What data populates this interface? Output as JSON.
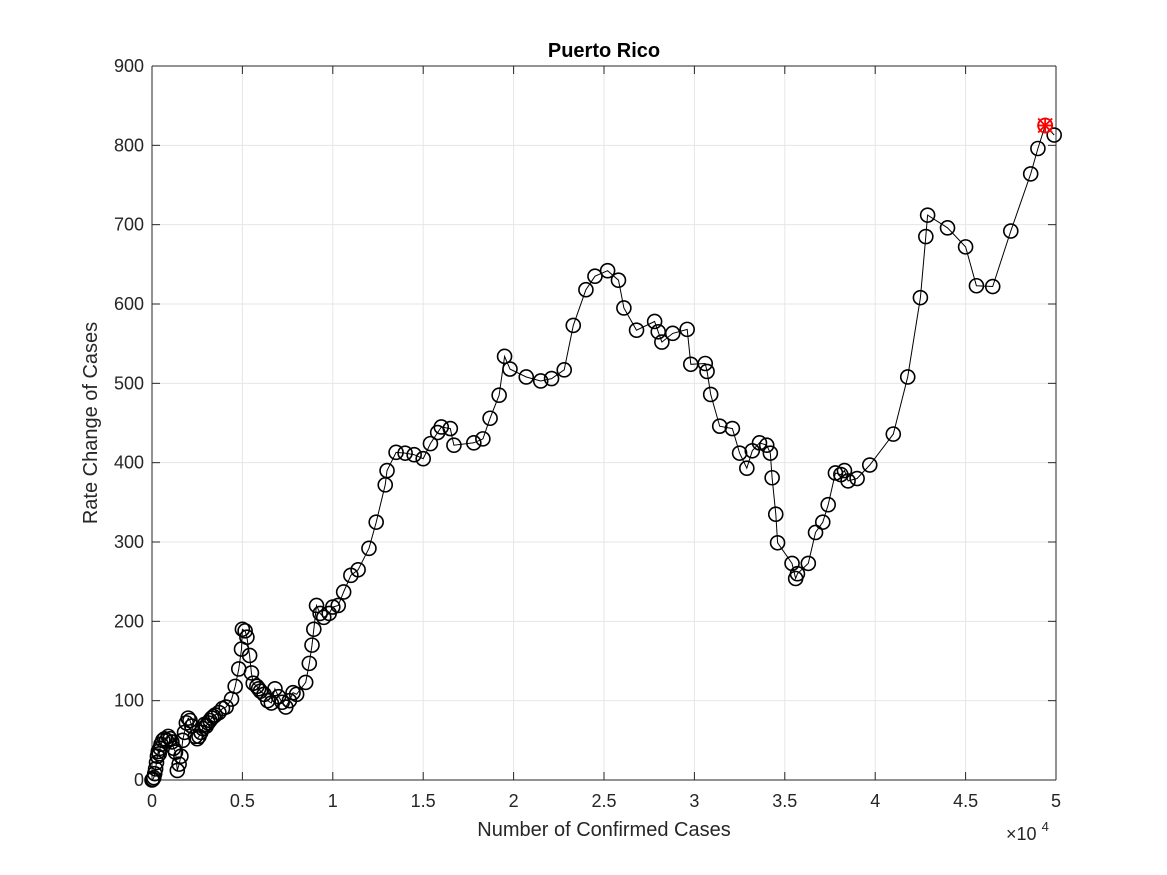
{
  "chart_data": {
    "type": "line",
    "title": "Puerto Rico",
    "xlabel": "Number of Confirmed Cases",
    "ylabel": "Rate Change of Cases",
    "x_exponent_label": "×10",
    "x_exponent_power": "4",
    "xlim": [
      0,
      50000
    ],
    "ylim": [
      0,
      900
    ],
    "x_ticks": [
      0,
      5000,
      10000,
      15000,
      20000,
      25000,
      30000,
      35000,
      40000,
      45000,
      50000
    ],
    "x_tick_labels": [
      "0",
      "0.5",
      "1",
      "1.5",
      "2",
      "2.5",
      "3",
      "3.5",
      "4",
      "4.5",
      "5"
    ],
    "y_ticks": [
      0,
      100,
      200,
      300,
      400,
      500,
      600,
      700,
      800,
      900
    ],
    "y_tick_labels": [
      "0",
      "100",
      "200",
      "300",
      "400",
      "500",
      "600",
      "700",
      "800",
      "900"
    ],
    "grid": true,
    "series": [
      {
        "marker": "circle",
        "color": "#000000",
        "points": [
          [
            0,
            0
          ],
          [
            50,
            1
          ],
          [
            100,
            3
          ],
          [
            150,
            8
          ],
          [
            200,
            14
          ],
          [
            250,
            22
          ],
          [
            300,
            30
          ],
          [
            350,
            36
          ],
          [
            400,
            33
          ],
          [
            450,
            40
          ],
          [
            500,
            45
          ],
          [
            600,
            50
          ],
          [
            700,
            52
          ],
          [
            800,
            50
          ],
          [
            900,
            55
          ],
          [
            1000,
            52
          ],
          [
            1100,
            48
          ],
          [
            1200,
            40
          ],
          [
            1300,
            35
          ],
          [
            1400,
            12
          ],
          [
            1500,
            20
          ],
          [
            1600,
            30
          ],
          [
            1700,
            50
          ],
          [
            1800,
            60
          ],
          [
            1900,
            72
          ],
          [
            2000,
            78
          ],
          [
            2100,
            75
          ],
          [
            2200,
            68
          ],
          [
            2400,
            55
          ],
          [
            2500,
            52
          ],
          [
            2600,
            55
          ],
          [
            2700,
            60
          ],
          [
            2800,
            65
          ],
          [
            2900,
            70
          ],
          [
            3000,
            68
          ],
          [
            3100,
            72
          ],
          [
            3200,
            75
          ],
          [
            3300,
            78
          ],
          [
            3400,
            80
          ],
          [
            3500,
            82
          ],
          [
            3700,
            85
          ],
          [
            3900,
            90
          ],
          [
            4100,
            92
          ],
          [
            4400,
            102
          ],
          [
            4600,
            118
          ],
          [
            4800,
            140
          ],
          [
            4950,
            165
          ],
          [
            5000,
            190
          ],
          [
            5150,
            188
          ],
          [
            5250,
            180
          ],
          [
            5400,
            157
          ],
          [
            5500,
            135
          ],
          [
            5600,
            122
          ],
          [
            5800,
            118
          ],
          [
            5900,
            115
          ],
          [
            6000,
            112
          ],
          [
            6200,
            108
          ],
          [
            6400,
            100
          ],
          [
            6600,
            97
          ],
          [
            6800,
            115
          ],
          [
            7000,
            105
          ],
          [
            7200,
            98
          ],
          [
            7400,
            92
          ],
          [
            7600,
            100
          ],
          [
            7800,
            110
          ],
          [
            8000,
            108
          ],
          [
            8500,
            123
          ],
          [
            8700,
            147
          ],
          [
            8850,
            170
          ],
          [
            8950,
            190
          ],
          [
            9100,
            220
          ],
          [
            9300,
            210
          ],
          [
            9500,
            205
          ],
          [
            9800,
            210
          ],
          [
            10000,
            218
          ],
          [
            10300,
            220
          ],
          [
            10600,
            237
          ],
          [
            11000,
            258
          ],
          [
            11400,
            265
          ],
          [
            12000,
            292
          ],
          [
            12400,
            325
          ],
          [
            12900,
            372
          ],
          [
            13000,
            390
          ],
          [
            13500,
            413
          ],
          [
            14000,
            412
          ],
          [
            14500,
            410
          ],
          [
            15000,
            405
          ],
          [
            15400,
            424
          ],
          [
            15800,
            438
          ],
          [
            16000,
            445
          ],
          [
            16500,
            443
          ],
          [
            16700,
            422
          ],
          [
            17800,
            425
          ],
          [
            18300,
            430
          ],
          [
            18700,
            456
          ],
          [
            19200,
            485
          ],
          [
            19500,
            534
          ],
          [
            19800,
            518
          ],
          [
            20700,
            508
          ],
          [
            21500,
            503
          ],
          [
            22100,
            506
          ],
          [
            22800,
            517
          ],
          [
            23300,
            573
          ],
          [
            24000,
            618
          ],
          [
            24500,
            635
          ],
          [
            25200,
            642
          ],
          [
            25800,
            630
          ],
          [
            26100,
            595
          ],
          [
            26800,
            567
          ],
          [
            27800,
            578
          ],
          [
            28000,
            565
          ],
          [
            28200,
            552
          ],
          [
            28800,
            563
          ],
          [
            29600,
            568
          ],
          [
            29800,
            524
          ],
          [
            30600,
            525
          ],
          [
            30700,
            515
          ],
          [
            30900,
            486
          ],
          [
            31400,
            446
          ],
          [
            32100,
            443
          ],
          [
            32500,
            412
          ],
          [
            32900,
            393
          ],
          [
            33200,
            415
          ],
          [
            33600,
            425
          ],
          [
            34000,
            422
          ],
          [
            34200,
            412
          ],
          [
            34300,
            381
          ],
          [
            34500,
            335
          ],
          [
            34600,
            299
          ],
          [
            35400,
            273
          ],
          [
            35600,
            254
          ],
          [
            35700,
            260
          ],
          [
            36300,
            273
          ],
          [
            36700,
            312
          ],
          [
            37100,
            325
          ],
          [
            37400,
            347
          ],
          [
            37800,
            387
          ],
          [
            38100,
            385
          ],
          [
            38300,
            390
          ],
          [
            38500,
            377
          ],
          [
            39000,
            380
          ],
          [
            39700,
            397
          ],
          [
            41000,
            436
          ],
          [
            41800,
            508
          ],
          [
            42500,
            608
          ],
          [
            42800,
            685
          ],
          [
            42900,
            712
          ],
          [
            44000,
            696
          ],
          [
            45000,
            672
          ],
          [
            45600,
            623
          ],
          [
            46500,
            622
          ],
          [
            47500,
            692
          ],
          [
            48600,
            764
          ],
          [
            49000,
            796
          ],
          [
            49400,
            825
          ],
          [
            49900,
            813
          ]
        ]
      }
    ],
    "highlight": {
      "x": 49400,
      "y": 825,
      "color": "#ff0000",
      "marker": "star-x"
    }
  }
}
